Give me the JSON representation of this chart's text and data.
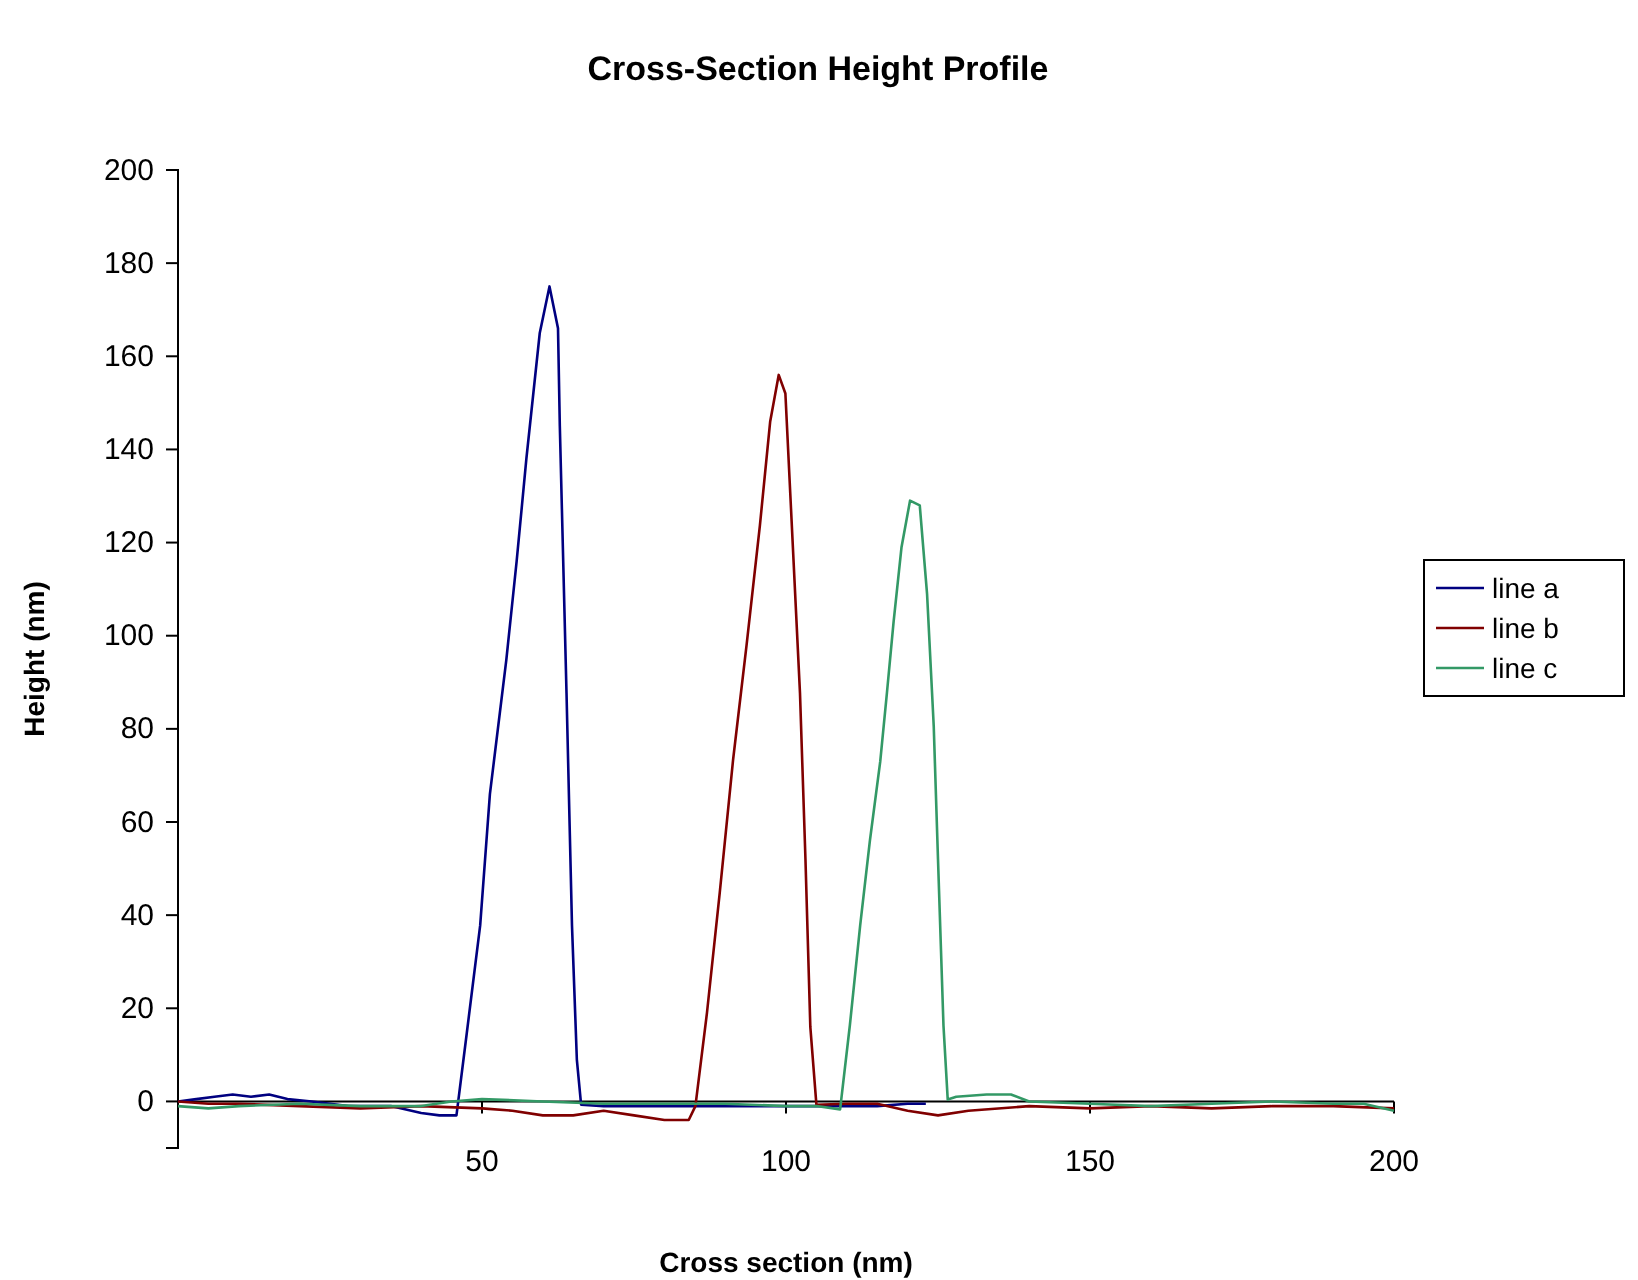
{
  "chart_data": {
    "type": "line",
    "title": "Cross-Section Height Profile",
    "xlabel": "Cross section  (nm)",
    "ylabel": "Height (nm)",
    "xlim": [
      0,
      200
    ],
    "xticks": [
      {
        "value": 0,
        "label": null
      },
      50,
      100,
      150,
      200
    ],
    "ylim": [
      -10,
      200
    ],
    "yticks": [
      0,
      20,
      40,
      60,
      80,
      100,
      120,
      140,
      160,
      180,
      200
    ],
    "grid": false,
    "legend": "right",
    "line_style": "solid",
    "marker": "none",
    "series": [
      {
        "name": "line a",
        "color": "#000080",
        "x": [
          0,
          3,
          6,
          9,
          12,
          15,
          18,
          22,
          28,
          35,
          40,
          43,
          45.8,
          47.5,
          49.7,
          51.3,
          54,
          55.7,
          57.3,
          59.5,
          61.1,
          62.5,
          62.8,
          63.9,
          64.8,
          65.6,
          66.3,
          70,
          80,
          90,
          100,
          110,
          115,
          120,
          123
        ],
        "values": [
          0,
          0.5,
          1,
          1.5,
          1,
          1.5,
          0.5,
          0,
          -1,
          -1,
          -2.5,
          -3,
          -3,
          14.7,
          37.8,
          66,
          94.8,
          116,
          138,
          165,
          175,
          166,
          145,
          87.7,
          37.8,
          9,
          -0.7,
          -1,
          -1,
          -1,
          -1,
          -1,
          -1,
          -0.5,
          -0.5
        ]
      },
      {
        "name": "line b",
        "color": "#800000",
        "x": [
          0,
          5,
          10,
          20,
          30,
          40,
          50,
          55,
          60,
          65,
          70,
          75,
          80,
          84,
          85.1,
          87,
          89.1,
          91.3,
          93.5,
          95.7,
          97.4,
          98.8,
          99.9,
          100.7,
          102.3,
          103.2,
          104,
          105,
          110,
          115,
          120,
          125,
          130,
          140,
          150,
          160,
          170,
          180,
          190,
          200
        ],
        "values": [
          0,
          -0.5,
          -0.5,
          -1,
          -1.5,
          -1,
          -1.5,
          -2,
          -3,
          -3,
          -2,
          -3,
          -4,
          -4,
          -1,
          19,
          44.8,
          73.4,
          97.8,
          123.6,
          146,
          156,
          152,
          130.6,
          87.7,
          52,
          16,
          -0.7,
          -0.5,
          -0.5,
          -2,
          -3,
          -2,
          -1,
          -1.5,
          -1,
          -1.5,
          -1,
          -1,
          -1.5
        ]
      },
      {
        "name": "line c",
        "color": "#339966",
        "x": [
          0,
          5,
          10,
          20,
          30,
          40,
          45,
          50,
          60,
          70,
          80,
          90,
          100,
          105,
          108.9,
          110.5,
          112.2,
          113.8,
          115.5,
          116.6,
          117.7,
          119,
          120.4,
          122,
          123.2,
          124.3,
          125,
          125.9,
          126.6,
          128,
          133,
          137,
          140,
          150,
          160,
          170,
          180,
          190,
          195,
          200
        ],
        "values": [
          -1,
          -1.5,
          -1,
          -0.5,
          -1,
          -1,
          0,
          0.5,
          0,
          -0.5,
          -0.5,
          -0.5,
          -1,
          -1,
          -1.7,
          16.3,
          37.8,
          56,
          73,
          87.7,
          103,
          119,
          129,
          128,
          109,
          80.5,
          52,
          16.3,
          0.4,
          1,
          1.5,
          1.5,
          0,
          -0.5,
          -1,
          -0.5,
          0,
          -0.5,
          -0.5,
          -2
        ]
      }
    ]
  }
}
